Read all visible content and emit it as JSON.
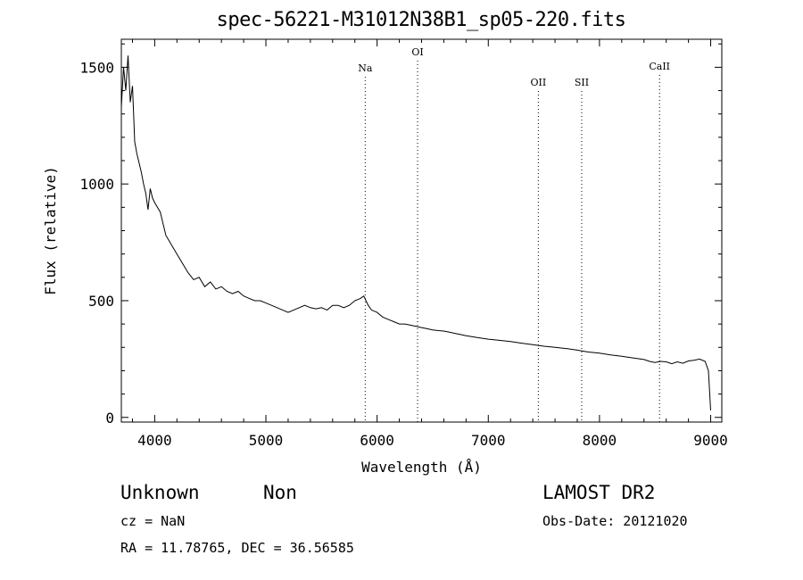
{
  "chart_data": {
    "type": "line",
    "title": "spec-56221-M31012N38B1_sp05-220.fits",
    "xlabel": "Wavelength (Å)",
    "ylabel": "Flux (relative)",
    "xlim": [
      3700,
      9100
    ],
    "ylim": [
      -20,
      1620
    ],
    "x_ticks": [
      4000,
      5000,
      6000,
      7000,
      8000,
      9000
    ],
    "y_ticks": [
      0,
      500,
      1000,
      1500
    ],
    "grid": false,
    "series": [
      {
        "x": [
          3700,
          3720,
          3740,
          3760,
          3780,
          3800,
          3820,
          3840,
          3860,
          3880,
          3900,
          3920,
          3940,
          3960,
          3980,
          4000,
          4050,
          4100,
          4150,
          4200,
          4250,
          4300,
          4350,
          4400,
          4450,
          4500,
          4550,
          4600,
          4650,
          4700,
          4750,
          4800,
          4850,
          4900,
          4950,
          5000,
          5050,
          5100,
          5150,
          5200,
          5250,
          5300,
          5350,
          5400,
          5450,
          5500,
          5550,
          5600,
          5650,
          5700,
          5750,
          5800,
          5850,
          5880,
          5900,
          5920,
          5950,
          6000,
          6050,
          6100,
          6150,
          6200,
          6250,
          6300,
          6350,
          6400,
          6450,
          6500,
          6550,
          6600,
          6650,
          6700,
          6750,
          6800,
          6900,
          7000,
          7100,
          7200,
          7300,
          7400,
          7500,
          7600,
          7700,
          7800,
          7900,
          8000,
          8100,
          8200,
          8300,
          8400,
          8450,
          8500,
          8550,
          8600,
          8650,
          8700,
          8750,
          8800,
          8850,
          8900,
          8950,
          8980,
          9000
        ],
        "values": [
          1330,
          1500,
          1400,
          1550,
          1350,
          1420,
          1180,
          1130,
          1090,
          1050,
          1000,
          960,
          890,
          980,
          940,
          920,
          880,
          780,
          740,
          700,
          660,
          620,
          590,
          600,
          560,
          580,
          550,
          560,
          540,
          530,
          540,
          520,
          510,
          500,
          500,
          490,
          480,
          470,
          460,
          450,
          460,
          470,
          480,
          470,
          465,
          470,
          460,
          480,
          480,
          470,
          480,
          500,
          510,
          520,
          500,
          480,
          460,
          450,
          430,
          420,
          410,
          400,
          400,
          395,
          390,
          385,
          380,
          375,
          372,
          370,
          365,
          360,
          355,
          350,
          342,
          335,
          330,
          325,
          318,
          312,
          305,
          300,
          295,
          288,
          280,
          275,
          268,
          262,
          255,
          248,
          240,
          235,
          240,
          238,
          230,
          238,
          232,
          242,
          245,
          250,
          240,
          200,
          30
        ]
      }
    ],
    "annotations": [
      {
        "label": "Na",
        "x": 5893
      },
      {
        "label": "OI",
        "x": 6364
      },
      {
        "label": "OII",
        "x": 7450
      },
      {
        "label": "SII",
        "x": 7840
      },
      {
        "label": "CaII",
        "x": 8540
      }
    ]
  },
  "footer": {
    "class_label": "Unknown",
    "subclass_label": "Non",
    "survey": "LAMOST DR2",
    "cz": "cz = NaN",
    "obs_date": "Obs-Date: 20121020",
    "coords": "RA =  11.78765, DEC =  36.56585"
  }
}
